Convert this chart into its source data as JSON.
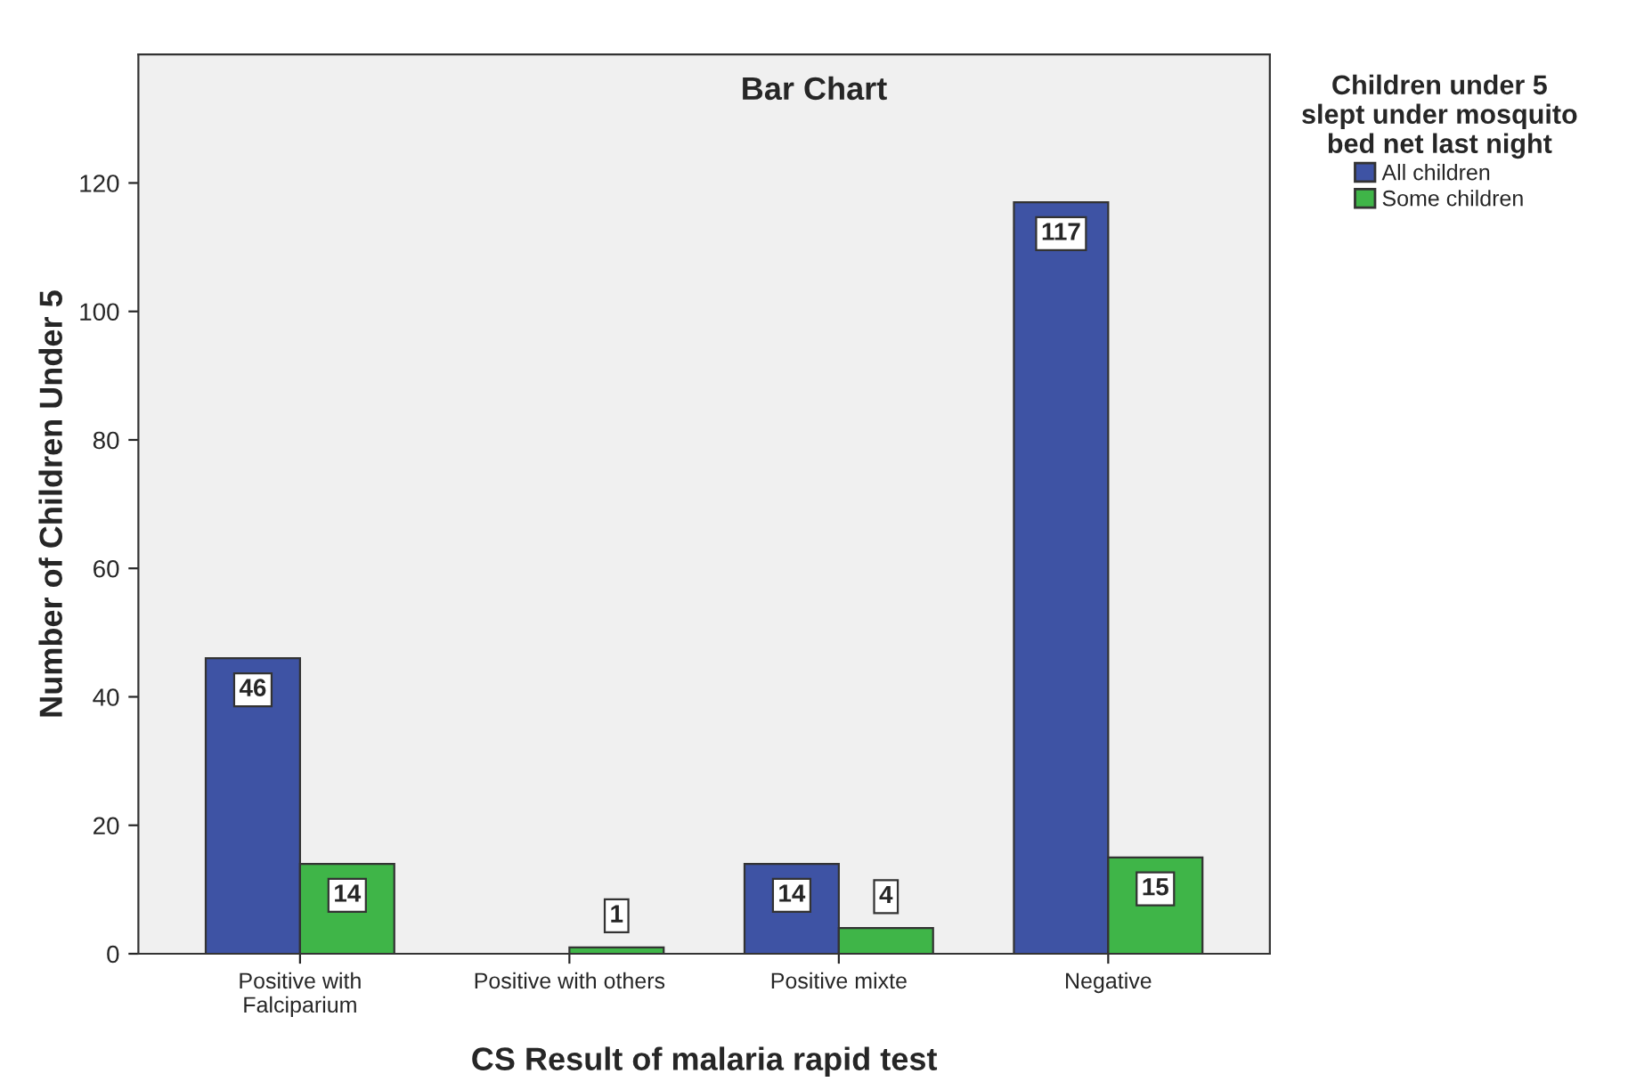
{
  "chart_data": {
    "type": "bar",
    "title": "Bar Chart",
    "xlabel": "CS Result of malaria rapid test",
    "ylabel": "Number of Children Under 5",
    "legend_title": "Children under 5\nslept under mosquito\nbed net last night",
    "categories": [
      "Positive with\nFalciparium",
      "Positive with others",
      "Positive mixte",
      "Negative"
    ],
    "series": [
      {
        "name": "All children",
        "color": "#3e53a4",
        "values": [
          46,
          null,
          14,
          117
        ]
      },
      {
        "name": "Some children",
        "color": "#3fb548",
        "values": [
          14,
          1,
          4,
          15
        ]
      }
    ],
    "ylim": [
      0,
      140
    ],
    "yticks": [
      0,
      20,
      40,
      60,
      80,
      100,
      120
    ],
    "grid": false,
    "legend": "top right",
    "data_labels": true
  }
}
